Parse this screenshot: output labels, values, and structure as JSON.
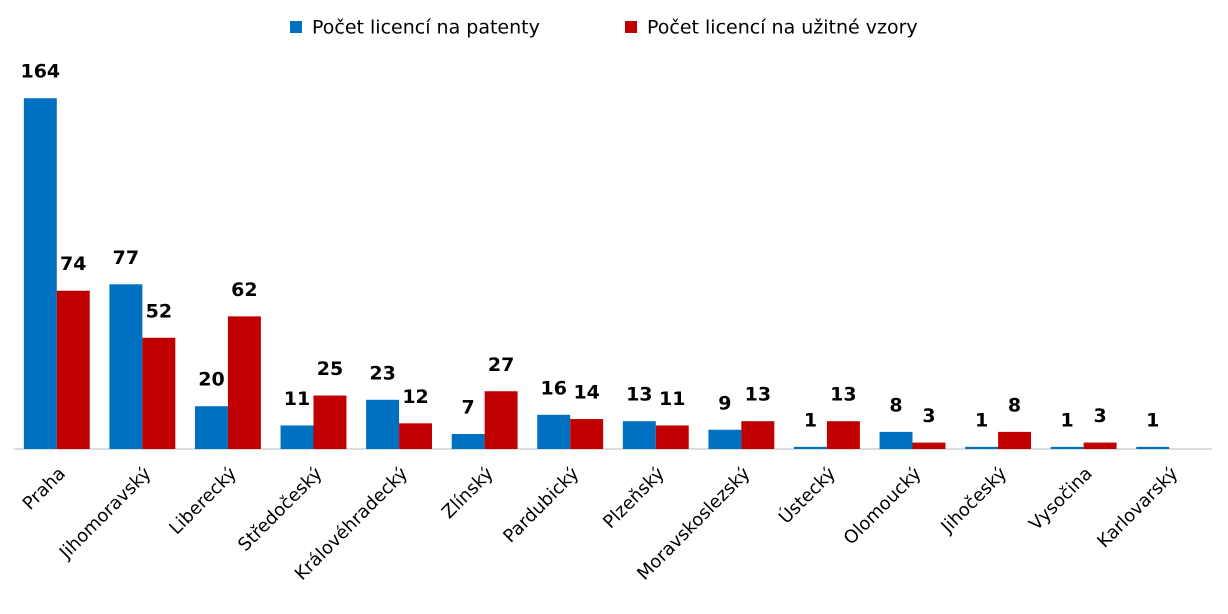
{
  "chart_data": {
    "type": "bar",
    "categories": [
      "Praha",
      "Jihomoravský",
      "Liberecký",
      "Středočeský",
      "Královéhradecký",
      "Zlínský",
      "Pardubický",
      "Plzeňský",
      "Moravskoslezský",
      "Ústecký",
      "Olomoucký",
      "Jihočeský",
      "Vysočina",
      "Karlovarský"
    ],
    "series": [
      {
        "name": "Počet licencí na patenty",
        "color": "#0070c0",
        "values": [
          164,
          77,
          20,
          11,
          23,
          7,
          16,
          13,
          9,
          1,
          8,
          1,
          1,
          1
        ]
      },
      {
        "name": "Počet licencí na užitné vzory",
        "color": "#c00000",
        "values": [
          74,
          52,
          62,
          25,
          12,
          27,
          14,
          11,
          13,
          13,
          3,
          8,
          3,
          null
        ]
      }
    ],
    "ylim": [
      0,
      180
    ]
  }
}
